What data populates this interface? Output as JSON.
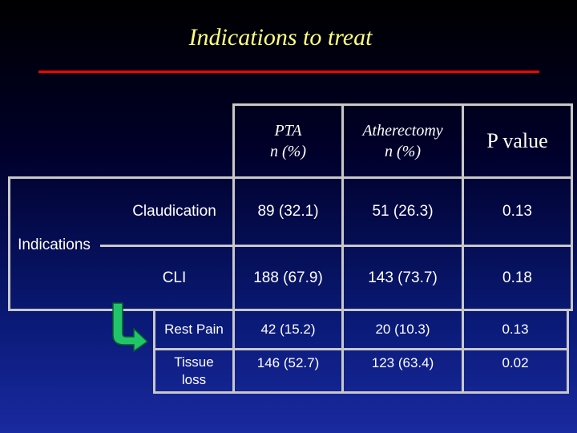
{
  "slide": {
    "title": "Indications to treat",
    "title_color": "#ffff80",
    "rule_color": "#ff0000"
  },
  "table": {
    "headers": {
      "pta": [
        "PTA",
        "n (%)"
      ],
      "atherectomy": [
        "Atherectomy",
        "n (%)"
      ],
      "p_value": "P value"
    },
    "group_label": "Indications",
    "rows": [
      {
        "label": "Claudication",
        "pta": "89 (32.1)",
        "atherectomy": "51 (26.3)",
        "p": "0.13"
      },
      {
        "label": "CLI",
        "pta": "188 (67.9)",
        "atherectomy": "143 (73.7)",
        "p": "0.18"
      }
    ],
    "sub_rows": [
      {
        "label": "Rest Pain",
        "pta": "42 (15.2)",
        "atherectomy": "20 (10.3)",
        "p": "0.13"
      },
      {
        "label": [
          "Tissue",
          "loss"
        ],
        "pta": "146 (52.7)",
        "atherectomy": "123 (63.4)",
        "p": "0.02"
      }
    ]
  },
  "icons": {
    "subset_arrow": "green-curved-arrow-icon"
  }
}
